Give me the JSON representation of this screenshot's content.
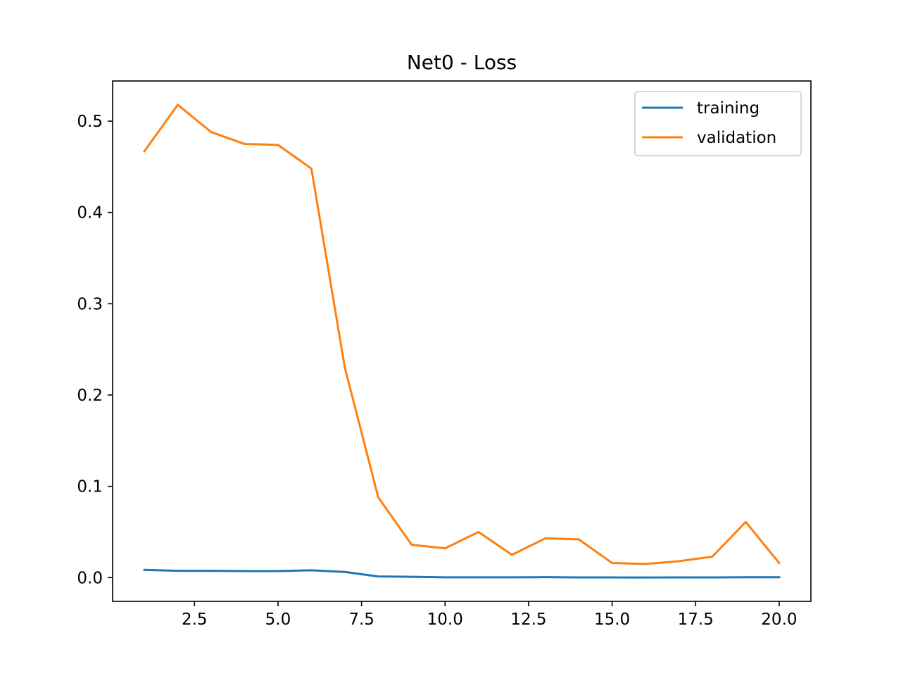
{
  "chart_data": {
    "type": "line",
    "title": "Net0 - Loss",
    "xlabel": "",
    "ylabel": "",
    "xlim": [
      0.05,
      20.95
    ],
    "ylim": [
      -0.026,
      0.544
    ],
    "xticks": [
      2.5,
      5.0,
      7.5,
      10.0,
      12.5,
      15.0,
      17.5,
      20.0
    ],
    "xtick_labels": [
      "2.5",
      "5.0",
      "7.5",
      "10.0",
      "12.5",
      "15.0",
      "17.5",
      "20.0"
    ],
    "yticks": [
      0.0,
      0.1,
      0.2,
      0.3,
      0.4,
      0.5
    ],
    "ytick_labels": [
      "0.0",
      "0.1",
      "0.2",
      "0.3",
      "0.4",
      "0.5"
    ],
    "grid": false,
    "legend_position": "top-right",
    "x": [
      1,
      2,
      3,
      4,
      5,
      6,
      7,
      8,
      9,
      10,
      11,
      12,
      13,
      14,
      15,
      16,
      17,
      18,
      19,
      20
    ],
    "series": [
      {
        "name": "training",
        "color": "#1f77b4",
        "values": [
          0.0085,
          0.0075,
          0.0075,
          0.0072,
          0.0072,
          0.008,
          0.0062,
          0.0013,
          0.0009,
          0.0003,
          0.0003,
          0.0003,
          0.0005,
          0.0002,
          0.0002,
          0.0001,
          0.0002,
          0.0002,
          0.0004,
          0.0004
        ]
      },
      {
        "name": "validation",
        "color": "#ff7f0e",
        "values": [
          0.467,
          0.518,
          0.488,
          0.475,
          0.474,
          0.448,
          0.23,
          0.088,
          0.036,
          0.032,
          0.05,
          0.025,
          0.043,
          0.042,
          0.016,
          0.015,
          0.018,
          0.023,
          0.061,
          0.016
        ]
      }
    ]
  }
}
